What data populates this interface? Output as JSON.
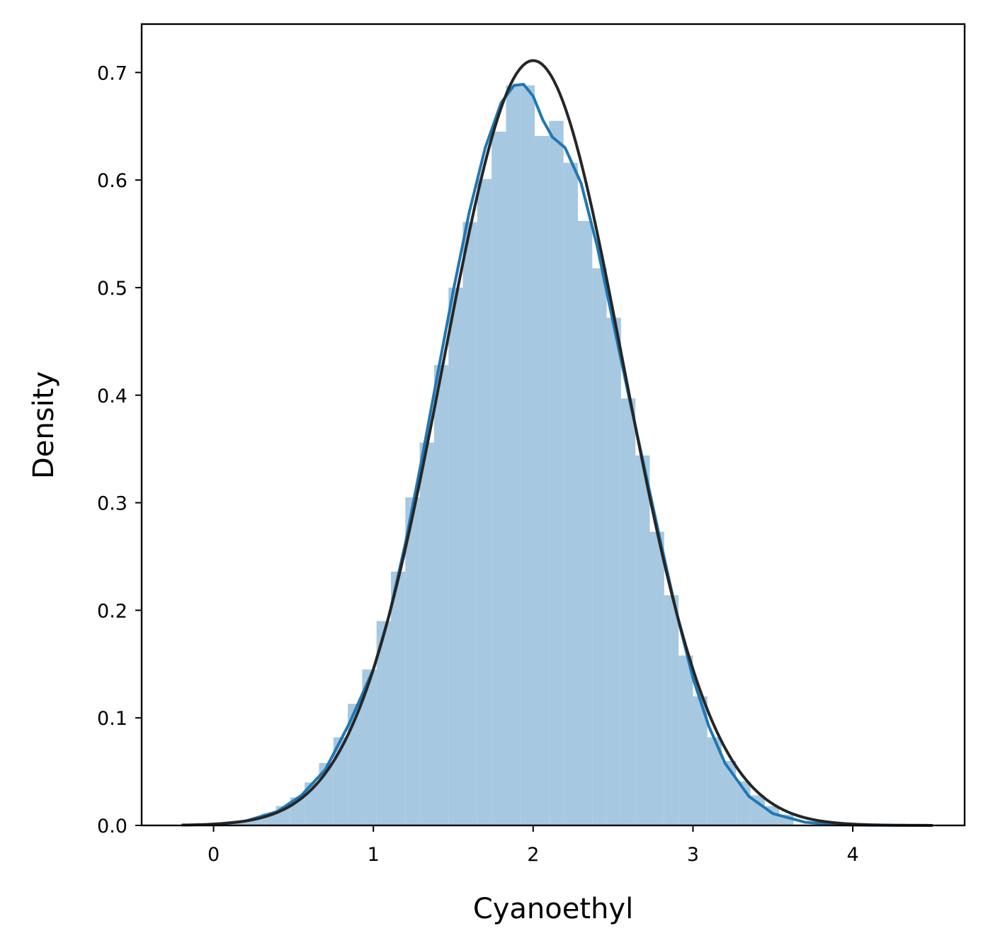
{
  "chart_data": {
    "type": "histogram",
    "title": "",
    "xlabel": "Cyanoethyl",
    "ylabel": "Density",
    "xlim": [
      -0.45,
      4.7
    ],
    "ylim": [
      0,
      0.745
    ],
    "x_ticks": [
      0,
      1,
      2,
      3,
      4
    ],
    "y_ticks": [
      0.0,
      0.1,
      0.2,
      0.3,
      0.4,
      0.5,
      0.6,
      0.7
    ],
    "x_tick_labels": [
      "0",
      "1",
      "2",
      "3",
      "4"
    ],
    "y_tick_labels": [
      "0.0",
      "0.1",
      "0.2",
      "0.3",
      "0.4",
      "0.5",
      "0.6",
      "0.7"
    ],
    "grid": false,
    "legend": "none",
    "colors": {
      "bars": "#a6c8e0",
      "kde": "#1f77b4",
      "normal_fit": "#262626"
    },
    "histogram": {
      "bin_edges": [
        0.03,
        0.12,
        0.21,
        0.3,
        0.39,
        0.48,
        0.57,
        0.66,
        0.75,
        0.84,
        0.93,
        1.02,
        1.11,
        1.2,
        1.29,
        1.38,
        1.47,
        1.56,
        1.65,
        1.74,
        1.83,
        1.92,
        2.01,
        2.1,
        2.19,
        2.28,
        2.37,
        2.46,
        2.55,
        2.64,
        2.73,
        2.82,
        2.91,
        3.0,
        3.09,
        3.18,
        3.27,
        3.36,
        3.45,
        3.54,
        3.63
      ],
      "densities": [
        0.001,
        0.003,
        0.006,
        0.011,
        0.018,
        0.026,
        0.04,
        0.058,
        0.082,
        0.113,
        0.145,
        0.19,
        0.236,
        0.305,
        0.356,
        0.428,
        0.5,
        0.561,
        0.601,
        0.645,
        0.688,
        0.688,
        0.641,
        0.655,
        0.616,
        0.562,
        0.518,
        0.472,
        0.397,
        0.344,
        0.273,
        0.214,
        0.158,
        0.12,
        0.082,
        0.06,
        0.041,
        0.028,
        0.018,
        0.01
      ]
    },
    "series": [
      {
        "type": "kde",
        "x": [
          0.0,
          0.2,
          0.4,
          0.55,
          0.7,
          0.85,
          1.0,
          1.1,
          1.2,
          1.3,
          1.4,
          1.5,
          1.6,
          1.7,
          1.8,
          1.88,
          1.94,
          2.0,
          2.06,
          2.12,
          2.2,
          2.3,
          2.4,
          2.5,
          2.6,
          2.7,
          2.8,
          2.9,
          3.0,
          3.1,
          3.2,
          3.35,
          3.5,
          3.7,
          3.9,
          4.1,
          4.3,
          4.5
        ],
        "y": [
          0.001,
          0.004,
          0.013,
          0.028,
          0.052,
          0.095,
          0.145,
          0.196,
          0.262,
          0.338,
          0.418,
          0.497,
          0.57,
          0.63,
          0.672,
          0.688,
          0.689,
          0.678,
          0.656,
          0.64,
          0.63,
          0.597,
          0.539,
          0.468,
          0.398,
          0.33,
          0.262,
          0.196,
          0.137,
          0.092,
          0.058,
          0.027,
          0.011,
          0.003,
          0.0007,
          0.0002,
          0.0001,
          0.0
        ]
      },
      {
        "type": "normal_fit",
        "mean": 2.0,
        "std": 0.561,
        "x_range": [
          -0.2,
          4.5
        ]
      }
    ]
  }
}
